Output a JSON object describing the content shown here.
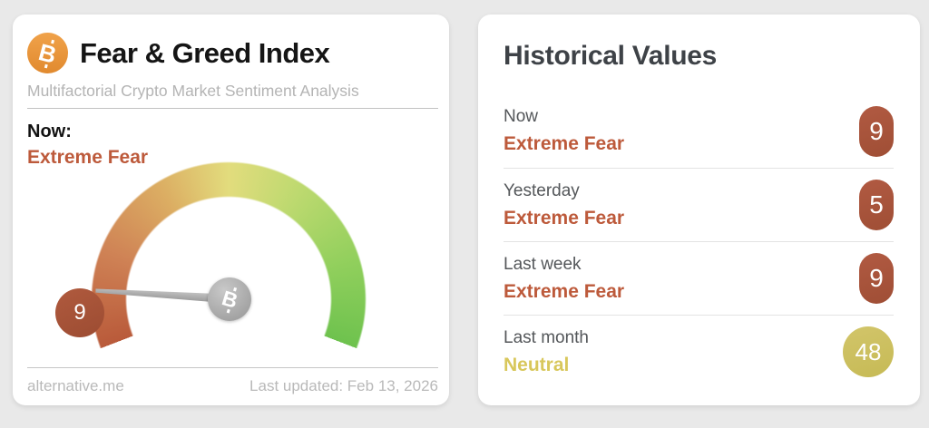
{
  "page": {
    "background_color": "#e9e9e9"
  },
  "fear_greed_card": {
    "title": "Fear & Greed Index",
    "subtitle": "Multifactorial Crypto Market Sentiment Analysis",
    "now_label": "Now:",
    "now_classification": "Extreme Fear",
    "bitcoin_glyph": "B",
    "gauge": {
      "value": 9,
      "min": 0,
      "max": 100,
      "badge": "9",
      "hub_icon": "bitcoin-icon"
    },
    "footer": {
      "source": "alternative.me",
      "last_updated": "Last updated: Feb 13, 2026"
    }
  },
  "historical_card": {
    "title": "Historical Values",
    "rows": [
      {
        "label": "Now",
        "classification": "Extreme Fear",
        "value": "9"
      },
      {
        "label": "Yesterday",
        "classification": "Extreme Fear",
        "value": "5"
      },
      {
        "label": "Last week",
        "classification": "Extreme Fear",
        "value": "9"
      },
      {
        "label": "Last month",
        "classification": "Neutral",
        "value": "48"
      }
    ]
  },
  "colors": {
    "extreme_fear_text": "#bd5a3b",
    "fear_badge": "#a8543c",
    "neutral_text": "#d8c75b",
    "neutral_badge": "#ccc05e",
    "bitcoin_orange": "#e9973d",
    "gauge_gradient": [
      "#b95a3a",
      "#cf8255",
      "#dcae63",
      "#e2dc7d",
      "#bcd96f",
      "#90cf5c",
      "#6ec24e"
    ]
  },
  "chart_data": {
    "type": "gauge",
    "title": "Fear & Greed Index",
    "value": 9,
    "range": [
      0,
      100
    ],
    "classification": "Extreme Fear",
    "arc_span_degrees": 222,
    "needle_angle_deg_below_horizontal_left": 3.5,
    "historical": [
      {
        "period": "Now",
        "value": 9,
        "classification": "Extreme Fear"
      },
      {
        "period": "Yesterday",
        "value": 5,
        "classification": "Extreme Fear"
      },
      {
        "period": "Last week",
        "value": 9,
        "classification": "Extreme Fear"
      },
      {
        "period": "Last month",
        "value": 48,
        "classification": "Neutral"
      }
    ]
  }
}
